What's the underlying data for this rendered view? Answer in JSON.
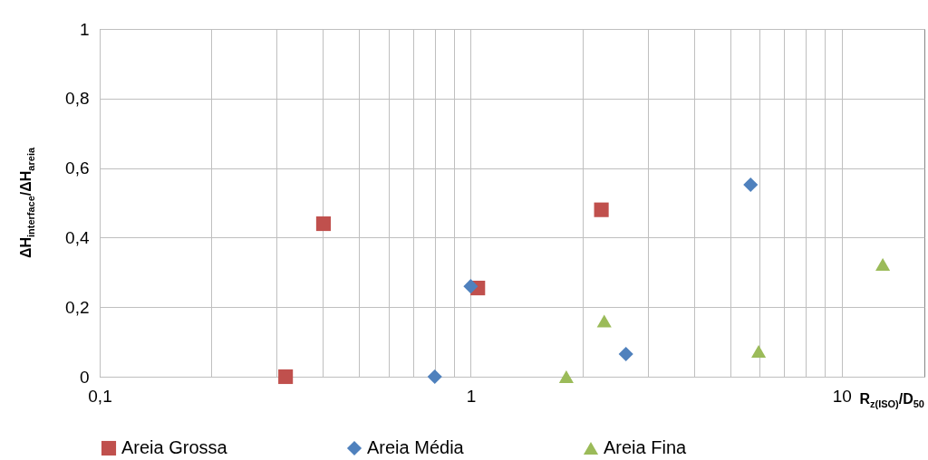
{
  "chart_data": {
    "type": "scatter",
    "xlabel": "R$_{z(ISO)}$/D$_{50}$",
    "ylabel": "ΔH$_{interface}$/ΔH$_{areia}$",
    "log": "x",
    "grid": true,
    "legend": "bottom",
    "xlim": [
      0.1,
      16.7
    ],
    "xticks": [
      {
        "value": 0.1,
        "label": "0,1"
      },
      {
        "value": 0.2,
        "label": null
      },
      {
        "value": 0.3,
        "label": null
      },
      {
        "value": 0.4,
        "label": null
      },
      {
        "value": 0.5,
        "label": null
      },
      {
        "value": 0.6,
        "label": null
      },
      {
        "value": 0.7,
        "label": null
      },
      {
        "value": 0.8,
        "label": null
      },
      {
        "value": 0.9,
        "label": null
      },
      1,
      {
        "value": 2,
        "label": null
      },
      {
        "value": 3,
        "label": null
      },
      {
        "value": 4,
        "label": null
      },
      {
        "value": 5,
        "label": null
      },
      {
        "value": 6,
        "label": null
      },
      {
        "value": 7,
        "label": null
      },
      {
        "value": 8,
        "label": null
      },
      {
        "value": 9,
        "label": null
      },
      10
    ],
    "ylim": [
      0,
      1
    ],
    "yticks": [
      0,
      {
        "value": 0.2,
        "label": "0,2"
      },
      {
        "value": 0.4,
        "label": "0,4"
      },
      {
        "value": 0.6,
        "label": "0,6"
      },
      {
        "value": 0.8,
        "label": "0,8"
      },
      1
    ],
    "series": [
      {
        "name": "Areia Grossa",
        "color": "#c0504d",
        "marker": "square",
        "x": [
          0.317,
          0.401,
          1.045,
          2.25
        ],
        "values": [
          0,
          0.44,
          0.255,
          0.48
        ]
      },
      {
        "name": "Areia Média",
        "color": "#4f81bd",
        "marker": "diamond",
        "x": [
          0.8,
          1.0,
          2.62,
          5.68
        ],
        "values": [
          0,
          0.26,
          0.065,
          0.552
        ]
      },
      {
        "name": "Areia Fina",
        "color": "#9bbb59",
        "marker": "triangle",
        "x": [
          1.81,
          2.29,
          5.97,
          12.9
        ],
        "values": [
          0,
          0.16,
          0.073,
          0.323
        ]
      }
    ]
  }
}
